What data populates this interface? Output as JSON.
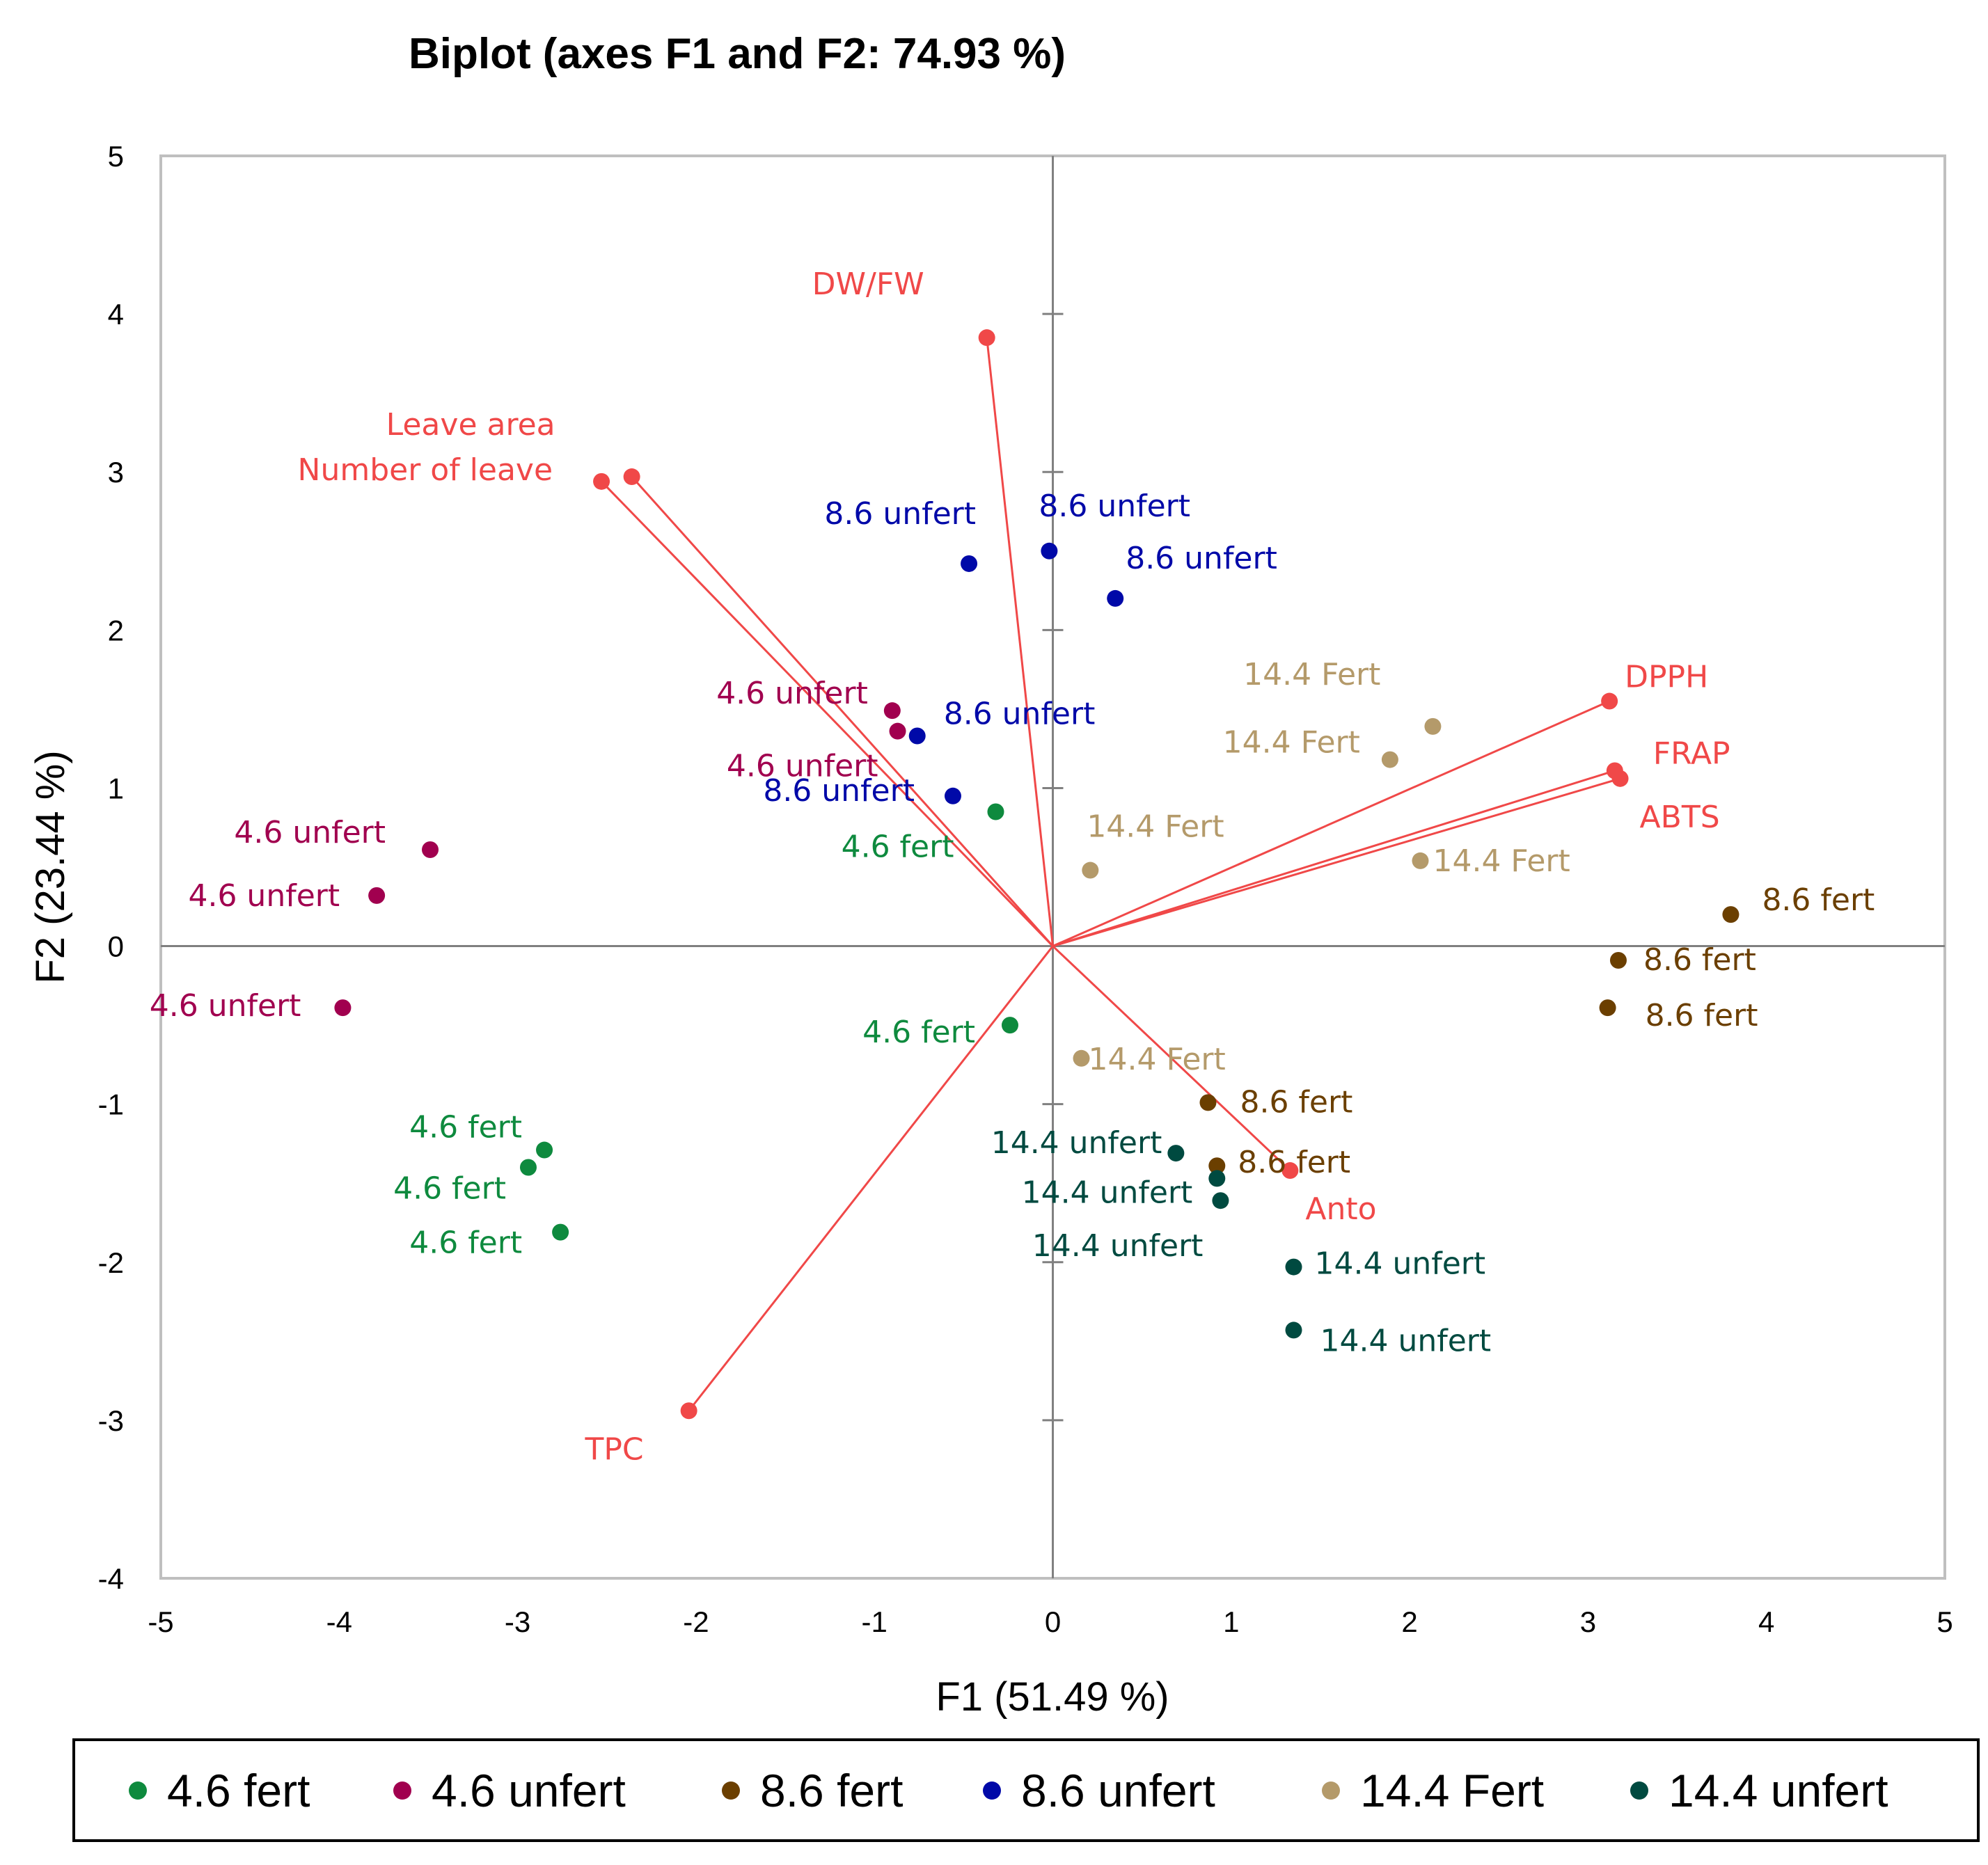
{
  "chart_data": {
    "type": "scatter",
    "title": "Biplot (axes F1 and F2: 74.93 %)",
    "xlabel": "F1 (51.49 %)",
    "ylabel": "F2 (23.44 %)",
    "xlim": [
      -5,
      5
    ],
    "ylim": [
      -4,
      5
    ],
    "xticks": [
      -5,
      -4,
      -3,
      -2,
      -1,
      0,
      1,
      2,
      3,
      4,
      5
    ],
    "yticks": [
      -4,
      -3,
      -2,
      -1,
      0,
      1,
      2,
      3,
      4,
      5
    ],
    "legend_position": "bottom",
    "colors": {
      "4.6 fert": "#0E8A3E",
      "4.6 unfert": "#A1004F",
      "8.6 fert": "#6B3F00",
      "8.6 unfert": "#0009A8",
      "14.4 Fert": "#B49A6A",
      "14.4 unfert": "#004A40",
      "variables": "#F04848"
    },
    "series": [
      {
        "name": "4.6 fert",
        "points": [
          {
            "x": -0.32,
            "y": 0.85,
            "label": "4.6 fert"
          },
          {
            "x": -0.24,
            "y": -0.5,
            "label": "4.6 fert"
          },
          {
            "x": -2.85,
            "y": -1.29,
            "label": "4.6 fert"
          },
          {
            "x": -2.94,
            "y": -1.4,
            "label": "4.6 fert"
          },
          {
            "x": -2.76,
            "y": -1.81,
            "label": "4.6 fert"
          }
        ]
      },
      {
        "name": "4.6 unfert",
        "points": [
          {
            "x": -0.9,
            "y": 1.49,
            "label": "4.6 unfert"
          },
          {
            "x": -0.87,
            "y": 1.36,
            "label": "4.6 unfert"
          },
          {
            "x": -3.49,
            "y": 0.61,
            "label": "4.6 unfert"
          },
          {
            "x": -3.79,
            "y": 0.32,
            "label": "4.6 unfert"
          },
          {
            "x": -3.98,
            "y": -0.39,
            "label": "4.6 unfert"
          }
        ]
      },
      {
        "name": "8.6 fert",
        "points": [
          {
            "x": 3.8,
            "y": 0.2,
            "label": "8.6 fert"
          },
          {
            "x": 3.17,
            "y": -0.09,
            "label": "8.6 fert"
          },
          {
            "x": 3.11,
            "y": -0.39,
            "label": "8.6 fert"
          },
          {
            "x": 0.87,
            "y": -0.99,
            "label": "8.6 fert"
          },
          {
            "x": 0.92,
            "y": -1.39,
            "label": "8.6 fert"
          }
        ]
      },
      {
        "name": "8.6 unfert",
        "points": [
          {
            "x": -0.47,
            "y": 2.42,
            "label": "8.6 unfert"
          },
          {
            "x": -0.02,
            "y": 2.5,
            "label": "8.6 unfert"
          },
          {
            "x": 0.35,
            "y": 2.2,
            "label": "8.6 unfert"
          },
          {
            "x": -0.76,
            "y": 1.33,
            "label": "8.6 unfert"
          },
          {
            "x": -0.56,
            "y": 0.95,
            "label": "8.6 unfert"
          }
        ]
      },
      {
        "name": "14.4 Fert",
        "points": [
          {
            "x": 2.13,
            "y": 1.39,
            "label": "14.4 Fert"
          },
          {
            "x": 1.89,
            "y": 1.18,
            "label": "14.4 Fert"
          },
          {
            "x": 0.21,
            "y": 0.48,
            "label": "14.4 Fert"
          },
          {
            "x": 2.06,
            "y": 0.54,
            "label": "14.4 Fert"
          },
          {
            "x": 0.16,
            "y": -0.71,
            "label": "14.4 Fert"
          }
        ]
      },
      {
        "name": "14.4 unfert",
        "points": [
          {
            "x": 0.69,
            "y": -1.31,
            "label": "14.4 unfert"
          },
          {
            "x": 0.92,
            "y": -1.47,
            "label": "14.4 unfert"
          },
          {
            "x": 0.94,
            "y": -1.61,
            "label": "14.4 unfert"
          },
          {
            "x": 1.35,
            "y": -2.03,
            "label": "14.4 unfert"
          },
          {
            "x": 1.35,
            "y": -2.43,
            "label": "14.4 unfert"
          }
        ]
      }
    ],
    "variables": [
      {
        "name": "DW/FW",
        "x": -0.37,
        "y": 3.85
      },
      {
        "name": "Leave area",
        "x": -2.36,
        "y": 2.97
      },
      {
        "name": "Number of leave",
        "x": -2.53,
        "y": 2.94
      },
      {
        "name": "DPPH",
        "x": 3.12,
        "y": 1.55
      },
      {
        "name": "FRAP",
        "x": 3.15,
        "y": 1.11
      },
      {
        "name": "ABTS",
        "x": 3.18,
        "y": 1.06
      },
      {
        "name": "Anto",
        "x": 1.33,
        "y": -1.42
      },
      {
        "name": "TPC",
        "x": -2.04,
        "y": -2.94
      }
    ],
    "legend": [
      "4.6 fert",
      "4.6 unfert",
      "8.6 fert",
      "8.6 unfert",
      "14.4 Fert",
      "14.4 unfert"
    ]
  }
}
